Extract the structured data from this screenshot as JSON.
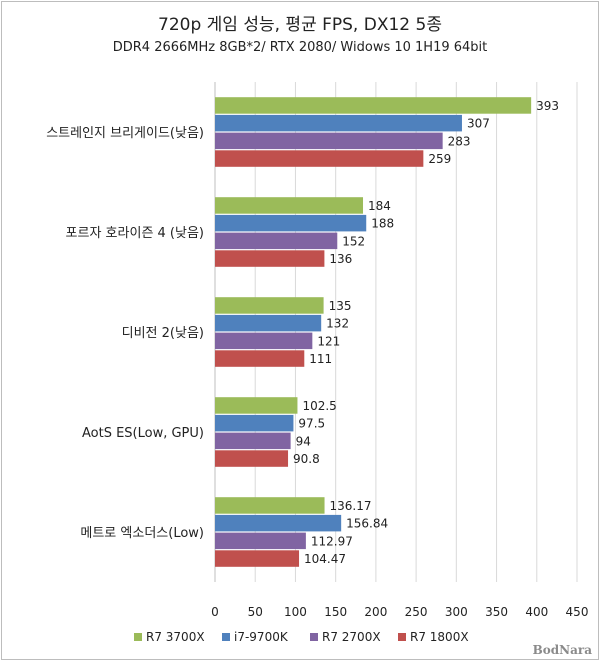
{
  "chart_data": {
    "type": "bar",
    "orientation": "horizontal",
    "title": "720p 게임 성능, 평균 FPS, DX12 5종",
    "subtitle": "DDR4 2666MHz 8GB*2/ RTX 2080/ Widows 10 1H19 64bit",
    "categories": [
      "스트레인지 브리게이드(낮음)",
      "포르자 호라이즌 4 (낮음)",
      "디비전 2(낮음)",
      "AotS ES(Low, GPU)",
      "메트로 엑소더스(Low)"
    ],
    "series": [
      {
        "name": "R7 3700X",
        "color": "#9bbb59",
        "values": [
          393,
          184,
          135,
          102.5,
          136.17
        ]
      },
      {
        "name": "i7-9700K",
        "color": "#4f81bd",
        "values": [
          307,
          188,
          132,
          97.5,
          156.84
        ]
      },
      {
        "name": "R7 2700X",
        "color": "#8064a2",
        "values": [
          283,
          152,
          121,
          94,
          112.97
        ]
      },
      {
        "name": "R7 1800X",
        "color": "#c0504d",
        "values": [
          259,
          136,
          111,
          90.8,
          104.47
        ]
      }
    ],
    "value_labels": [
      [
        "393",
        "184",
        "135",
        "102.5",
        "136.17"
      ],
      [
        "307",
        "188",
        "132",
        "97.5",
        "156.84"
      ],
      [
        "283",
        "152",
        "121",
        "94",
        "112.97"
      ],
      [
        "259",
        "136",
        "111",
        "90.8",
        "104.47"
      ]
    ],
    "xlim": [
      0,
      450
    ],
    "xticks": [
      0,
      50,
      100,
      150,
      200,
      250,
      300,
      350,
      400,
      450
    ],
    "grid": true,
    "legend_position": "bottom"
  },
  "watermark": "BodNara"
}
